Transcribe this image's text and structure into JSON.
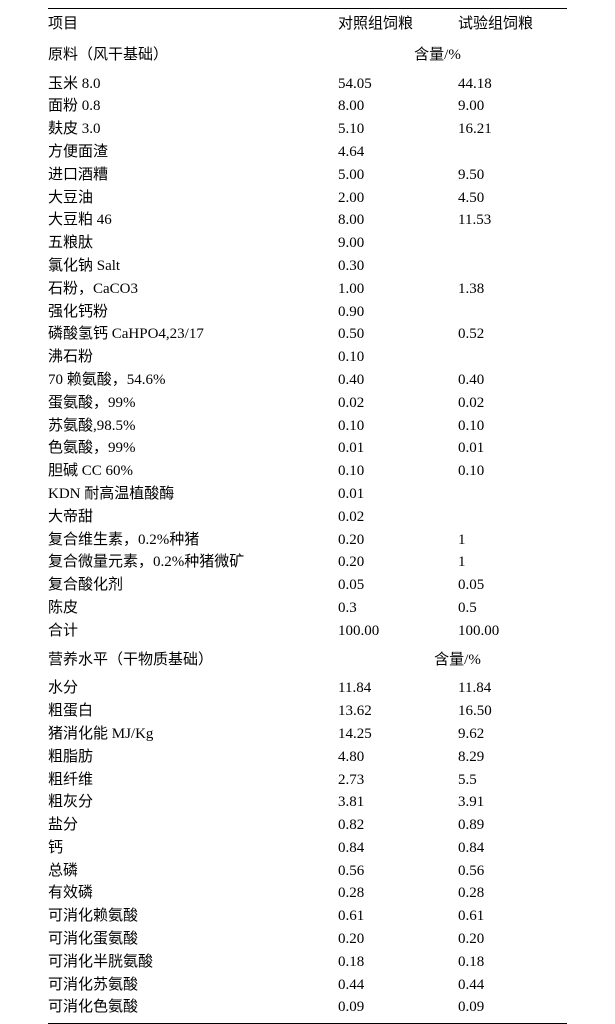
{
  "header": {
    "col1": "项目",
    "col2": "对照组饲粮",
    "col3": "试验组饲粮"
  },
  "section1": {
    "label": "原料（风干基础）",
    "unit": "含量/%"
  },
  "rows1": [
    {
      "name": "玉米 8.0",
      "c2": "54.05",
      "c3": "44.18"
    },
    {
      "name": "面粉 0.8",
      "c2": "8.00",
      "c3": "9.00"
    },
    {
      "name": "麸皮  3.0",
      "c2": "5.10",
      "c3": "16.21"
    },
    {
      "name": "方便面渣",
      "c2": "4.64",
      "c3": ""
    },
    {
      "name": "进口酒糟",
      "c2": "5.00",
      "c3": "9.50"
    },
    {
      "name": "大豆油",
      "c2": "2.00",
      "c3": "4.50"
    },
    {
      "name": "大豆粕    46",
      "c2": "8.00",
      "c3": "11.53"
    },
    {
      "name": "五粮肽",
      "c2": "9.00",
      "c3": ""
    },
    {
      "name": "氯化钠 Salt",
      "c2": "0.30",
      "c3": ""
    },
    {
      "name": "石粉，CaCO3",
      "c2": "1.00",
      "c3": "1.38"
    },
    {
      "name": "强化钙粉",
      "c2": "0.90",
      "c3": ""
    },
    {
      "name": "磷酸氢钙 CaHPO4,23/17",
      "c2": "0.50",
      "c3": "0.52"
    },
    {
      "name": "沸石粉",
      "c2": "0.10",
      "c3": ""
    },
    {
      "name": "70 赖氨酸，54.6%",
      "c2": "0.40",
      "c3": "0.40"
    },
    {
      "name": "蛋氨酸，99%",
      "c2": "0.02",
      "c3": "0.02"
    },
    {
      "name": "苏氨酸,98.5%",
      "c2": "0.10",
      "c3": "0.10"
    },
    {
      "name": "色氨酸，99%",
      "c2": "0.01",
      "c3": "0.01"
    },
    {
      "name": "胆碱 CC 60%",
      "c2": "0.10",
      "c3": "0.10"
    },
    {
      "name": "KDN 耐高温植酸酶",
      "c2": "0.01",
      "c3": ""
    },
    {
      "name": "大帝甜",
      "c2": "0.02",
      "c3": ""
    },
    {
      "name": "复合维生素，0.2%种猪",
      "c2": "0.20",
      "c3": "1"
    },
    {
      "name": "复合微量元素，0.2%种猪微矿",
      "c2": "0.20",
      "c3": "1"
    },
    {
      "name": "复合酸化剂",
      "c2": "0.05",
      "c3": "0.05"
    },
    {
      "name": "陈皮",
      "c2": "0.3",
      "c3": "0.5"
    },
    {
      "name": "合计",
      "c2": "100.00",
      "c3": "100.00"
    }
  ],
  "section2": {
    "label": "营养水平（干物质基础）",
    "unit": "含量/%"
  },
  "rows2": [
    {
      "name": "水分",
      "c2": "11.84",
      "c3": "11.84"
    },
    {
      "name": "粗蛋白",
      "c2": "13.62",
      "c3": "16.50"
    },
    {
      "name": "猪消化能 MJ/Kg",
      "c2": "14.25",
      "c3": "9.62"
    },
    {
      "name": "粗脂肪",
      "c2": "4.80",
      "c3": "8.29"
    },
    {
      "name": "粗纤维",
      "c2": "2.73",
      "c3": "5.5"
    },
    {
      "name": "粗灰分",
      "c2": "3.81",
      "c3": "3.91"
    },
    {
      "name": "盐分",
      "c2": "0.82",
      "c3": "0.89"
    },
    {
      "name": "钙",
      "c2": "0.84",
      "c3": "0.84"
    },
    {
      "name": "总磷",
      "c2": "0.56",
      "c3": "0.56"
    },
    {
      "name": "有效磷",
      "c2": "0.28",
      "c3": "0.28"
    },
    {
      "name": "可消化赖氨酸",
      "c2": "0.61",
      "c3": "0.61"
    },
    {
      "name": "可消化蛋氨酸",
      "c2": "0.20",
      "c3": "0.20"
    },
    {
      "name": "可消化半胱氨酸",
      "c2": "0.18",
      "c3": "0.18"
    },
    {
      "name": "可消化苏氨酸",
      "c2": "0.44",
      "c3": "0.44"
    },
    {
      "name": "可消化色氨酸",
      "c2": "0.09",
      "c3": "0.09"
    }
  ]
}
